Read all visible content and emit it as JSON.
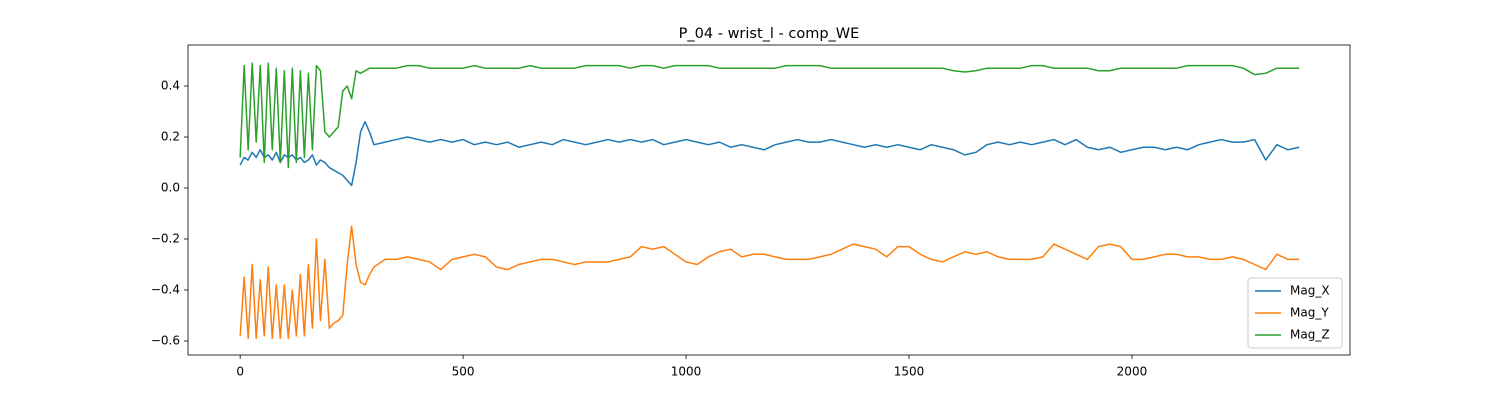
{
  "chart_data": {
    "type": "line",
    "title": "P_04 - wrist_l - comp_WE",
    "x": [
      0,
      9,
      18,
      27,
      36,
      45,
      54,
      63,
      72,
      81,
      90,
      99,
      108,
      117,
      126,
      135,
      144,
      153,
      162,
      171,
      180,
      190,
      200,
      210,
      220,
      230,
      240,
      250,
      260,
      270,
      280,
      290,
      300,
      325,
      350,
      375,
      400,
      425,
      450,
      475,
      500,
      525,
      550,
      575,
      600,
      625,
      650,
      675,
      700,
      725,
      750,
      775,
      800,
      825,
      850,
      875,
      900,
      925,
      950,
      975,
      1000,
      1025,
      1050,
      1075,
      1100,
      1125,
      1150,
      1175,
      1200,
      1225,
      1250,
      1275,
      1300,
      1325,
      1350,
      1375,
      1400,
      1425,
      1450,
      1475,
      1500,
      1525,
      1550,
      1575,
      1600,
      1625,
      1650,
      1675,
      1700,
      1725,
      1750,
      1775,
      1800,
      1825,
      1850,
      1875,
      1900,
      1925,
      1950,
      1975,
      2000,
      2025,
      2050,
      2075,
      2100,
      2125,
      2150,
      2175,
      2200,
      2225,
      2250,
      2275,
      2300,
      2325,
      2350,
      2375
    ],
    "series": [
      {
        "name": "Mag_X",
        "color": "#1f77b4",
        "values": [
          0.09,
          0.12,
          0.11,
          0.14,
          0.12,
          0.15,
          0.12,
          0.13,
          0.11,
          0.14,
          0.1,
          0.13,
          0.12,
          0.13,
          0.11,
          0.12,
          0.1,
          0.11,
          0.13,
          0.09,
          0.11,
          0.1,
          0.08,
          0.07,
          0.06,
          0.05,
          0.03,
          0.01,
          0.1,
          0.22,
          0.26,
          0.22,
          0.17,
          0.18,
          0.19,
          0.2,
          0.19,
          0.18,
          0.19,
          0.18,
          0.19,
          0.17,
          0.18,
          0.17,
          0.18,
          0.16,
          0.17,
          0.18,
          0.17,
          0.19,
          0.18,
          0.17,
          0.18,
          0.19,
          0.18,
          0.19,
          0.18,
          0.19,
          0.17,
          0.18,
          0.19,
          0.18,
          0.17,
          0.18,
          0.16,
          0.17,
          0.16,
          0.15,
          0.17,
          0.18,
          0.19,
          0.18,
          0.18,
          0.19,
          0.18,
          0.17,
          0.16,
          0.17,
          0.16,
          0.17,
          0.16,
          0.15,
          0.17,
          0.16,
          0.15,
          0.13,
          0.14,
          0.17,
          0.18,
          0.17,
          0.18,
          0.17,
          0.18,
          0.19,
          0.17,
          0.19,
          0.16,
          0.15,
          0.16,
          0.14,
          0.15,
          0.16,
          0.16,
          0.15,
          0.16,
          0.15,
          0.17,
          0.18,
          0.19,
          0.18,
          0.18,
          0.19,
          0.11,
          0.17,
          0.15,
          0.16
        ]
      },
      {
        "name": "Mag_Y",
        "color": "#ff7f0e",
        "values": [
          -0.58,
          -0.35,
          -0.59,
          -0.3,
          -0.59,
          -0.36,
          -0.58,
          -0.31,
          -0.59,
          -0.38,
          -0.59,
          -0.38,
          -0.59,
          -0.4,
          -0.58,
          -0.34,
          -0.58,
          -0.3,
          -0.55,
          -0.2,
          -0.52,
          -0.28,
          -0.55,
          -0.53,
          -0.52,
          -0.5,
          -0.3,
          -0.15,
          -0.3,
          -0.37,
          -0.38,
          -0.34,
          -0.31,
          -0.28,
          -0.28,
          -0.27,
          -0.28,
          -0.29,
          -0.32,
          -0.28,
          -0.27,
          -0.26,
          -0.27,
          -0.31,
          -0.32,
          -0.3,
          -0.29,
          -0.28,
          -0.28,
          -0.29,
          -0.3,
          -0.29,
          -0.29,
          -0.29,
          -0.28,
          -0.27,
          -0.23,
          -0.24,
          -0.23,
          -0.26,
          -0.29,
          -0.3,
          -0.27,
          -0.25,
          -0.24,
          -0.27,
          -0.26,
          -0.26,
          -0.27,
          -0.28,
          -0.28,
          -0.28,
          -0.27,
          -0.26,
          -0.24,
          -0.22,
          -0.23,
          -0.24,
          -0.27,
          -0.23,
          -0.23,
          -0.26,
          -0.28,
          -0.29,
          -0.27,
          -0.25,
          -0.26,
          -0.25,
          -0.27,
          -0.28,
          -0.28,
          -0.28,
          -0.27,
          -0.22,
          -0.24,
          -0.26,
          -0.28,
          -0.23,
          -0.22,
          -0.23,
          -0.28,
          -0.28,
          -0.27,
          -0.26,
          -0.26,
          -0.27,
          -0.27,
          -0.28,
          -0.28,
          -0.27,
          -0.28,
          -0.3,
          -0.32,
          -0.26,
          -0.28,
          -0.28
        ]
      },
      {
        "name": "Mag_Z",
        "color": "#2ca02c",
        "values": [
          0.12,
          0.48,
          0.15,
          0.49,
          0.18,
          0.48,
          0.1,
          0.49,
          0.15,
          0.47,
          0.1,
          0.46,
          0.08,
          0.47,
          0.1,
          0.46,
          0.12,
          0.45,
          0.15,
          0.48,
          0.46,
          0.22,
          0.2,
          0.22,
          0.24,
          0.38,
          0.4,
          0.35,
          0.46,
          0.45,
          0.46,
          0.47,
          0.47,
          0.47,
          0.47,
          0.48,
          0.48,
          0.47,
          0.47,
          0.47,
          0.47,
          0.48,
          0.47,
          0.47,
          0.47,
          0.47,
          0.48,
          0.47,
          0.47,
          0.47,
          0.47,
          0.48,
          0.48,
          0.48,
          0.48,
          0.47,
          0.48,
          0.48,
          0.47,
          0.48,
          0.48,
          0.48,
          0.48,
          0.47,
          0.47,
          0.47,
          0.47,
          0.47,
          0.47,
          0.48,
          0.48,
          0.48,
          0.48,
          0.47,
          0.47,
          0.47,
          0.47,
          0.47,
          0.47,
          0.47,
          0.47,
          0.47,
          0.47,
          0.47,
          0.46,
          0.455,
          0.46,
          0.47,
          0.47,
          0.47,
          0.47,
          0.48,
          0.48,
          0.47,
          0.47,
          0.47,
          0.47,
          0.46,
          0.46,
          0.47,
          0.47,
          0.47,
          0.47,
          0.47,
          0.47,
          0.48,
          0.48,
          0.48,
          0.48,
          0.48,
          0.47,
          0.445,
          0.45,
          0.47,
          0.47,
          0.47
        ]
      }
    ],
    "xlim": [
      -117,
      2489
    ],
    "ylim": [
      -0.655,
      0.561
    ],
    "xticks": [
      0,
      500,
      1000,
      1500,
      2000
    ],
    "yticks": [
      {
        "value": -0.6,
        "label": "−0.6"
      },
      {
        "value": -0.4,
        "label": "−0.4"
      },
      {
        "value": -0.2,
        "label": "−0.2"
      },
      {
        "value": 0,
        "label": "0.0"
      },
      0.2,
      0.4
    ],
    "legend": "lower right",
    "grid": false
  }
}
